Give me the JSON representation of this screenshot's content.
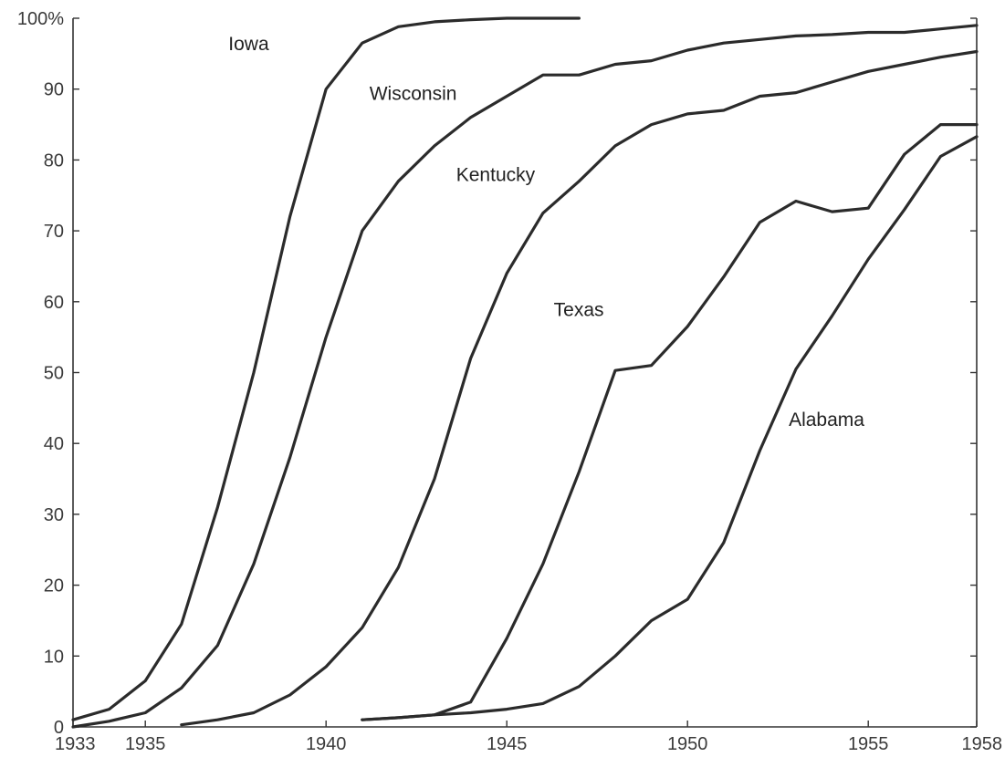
{
  "chart_data": {
    "type": "line",
    "xlim": [
      1933,
      1958
    ],
    "ylim": [
      0,
      100
    ],
    "grid": false,
    "legend": "inline labels",
    "x_ticks": [
      {
        "value": 1933,
        "label": "1933"
      },
      {
        "value": 1935,
        "label": "1935"
      },
      {
        "value": 1940,
        "label": "1940"
      },
      {
        "value": 1945,
        "label": "1945"
      },
      {
        "value": 1950,
        "label": "1950"
      },
      {
        "value": 1955,
        "label": "1955"
      },
      {
        "value": 1958,
        "label": "1958"
      }
    ],
    "y_ticks": [
      {
        "value": 0,
        "label": "0"
      },
      {
        "value": 10,
        "label": "10"
      },
      {
        "value": 20,
        "label": "20"
      },
      {
        "value": 30,
        "label": "30"
      },
      {
        "value": 40,
        "label": "40"
      },
      {
        "value": 50,
        "label": "50"
      },
      {
        "value": 60,
        "label": "60"
      },
      {
        "value": 70,
        "label": "70"
      },
      {
        "value": 80,
        "label": "80"
      },
      {
        "value": 90,
        "label": "90"
      },
      {
        "value": 100,
        "label": "100%"
      }
    ],
    "series": [
      {
        "name": "Iowa",
        "x": [
          1933,
          1934,
          1935,
          1936,
          1937,
          1938,
          1939,
          1940,
          1941,
          1942,
          1943,
          1944,
          1945,
          1946,
          1947
        ],
        "y": [
          1,
          2.5,
          6.5,
          14.5,
          31,
          50,
          72,
          90,
          96.5,
          98.8,
          99.5,
          99.8,
          100,
          100,
          100
        ],
        "label_pos": {
          "x": 1933.6,
          "y": 93.6
        }
      },
      {
        "name": "Wisconsin",
        "x": [
          1933,
          1934,
          1935,
          1936,
          1937,
          1938,
          1939,
          1940,
          1941,
          1942,
          1943,
          1944,
          1945,
          1946,
          1947,
          1948,
          1949,
          1950,
          1951,
          1952,
          1953,
          1954,
          1955,
          1956,
          1957,
          1958
        ],
        "y": [
          0,
          0.8,
          2,
          5.5,
          11.5,
          23,
          38,
          55,
          70,
          77,
          82,
          86,
          89,
          92,
          92,
          93.5,
          94,
          95.5,
          96.5,
          97,
          97.5,
          97.7,
          98,
          98,
          98.5,
          99
        ],
        "label_pos": {
          "x": 1933.6,
          "y": 88.6
        }
      },
      {
        "name": "Kentucky",
        "x": [
          1936,
          1937,
          1938,
          1939,
          1940,
          1941,
          1942,
          1943,
          1944,
          1945,
          1946,
          1947,
          1948,
          1949,
          1950,
          1951,
          1952,
          1953,
          1954,
          1955,
          1956,
          1957,
          1958
        ],
        "y": [
          0.3,
          1,
          2,
          4.5,
          8.5,
          14,
          22.5,
          35,
          52,
          64,
          72.5,
          77,
          82,
          85,
          86.5,
          87,
          89,
          89.5,
          91,
          92.5,
          93.5,
          94.5,
          95.3
        ],
        "label_pos": {
          "x": 1933.6,
          "y": 76.8
        }
      },
      {
        "name": "Texas",
        "x": [
          1941,
          1942,
          1943,
          1944,
          1945,
          1946,
          1947,
          1948,
          1949,
          1950,
          1951,
          1952,
          1953,
          1954,
          1955,
          1956,
          1957,
          1958
        ],
        "y": [
          1,
          1.3,
          1.7,
          3.5,
          12.5,
          23,
          36,
          50.3,
          51,
          56.5,
          63.5,
          71.2,
          74.2,
          72.7,
          73.2,
          80.8,
          85,
          85
        ],
        "label_pos": {
          "x": 1933.6,
          "y": 58
        }
      },
      {
        "name": "Alabama",
        "x": [
          1941,
          1942,
          1943,
          1944,
          1945,
          1946,
          1947,
          1948,
          1949,
          1950,
          1951,
          1952,
          1953,
          1954,
          1955,
          1956,
          1957,
          1958
        ],
        "y": [
          1,
          1.3,
          1.7,
          2,
          2.5,
          3.3,
          5.7,
          10,
          15,
          18,
          26,
          39,
          50.5,
          58,
          66,
          73,
          80.5,
          83.3
        ],
        "label_pos": {
          "x": 1933.6,
          "y": 42.5
        }
      }
    ]
  }
}
